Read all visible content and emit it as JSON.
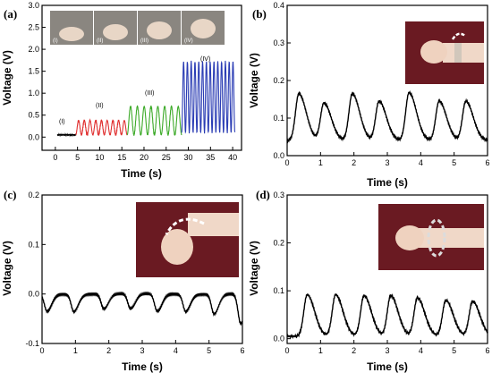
{
  "chart_data": [
    {
      "type": "line",
      "panel_label": "(a)",
      "xlabel": "Time (s)",
      "ylabel": "Voltage (V)",
      "xlim": [
        -3,
        42
      ],
      "ylim": [
        -0.3,
        3.0
      ],
      "xticks": [
        0,
        5,
        10,
        15,
        20,
        25,
        30,
        35,
        40
      ],
      "yticks": [
        0.0,
        0.5,
        1.0,
        1.5,
        2.0,
        2.5,
        3.0
      ],
      "ytick_labels": [
        "0.0",
        "0.5",
        "1.0",
        "1.5",
        "2.0",
        "2.5",
        "3.0"
      ],
      "grid": false,
      "inset_labels": [
        "(I)",
        "(II)",
        "(III)",
        "(IV)"
      ],
      "segments": [
        {
          "label": "(I)",
          "color": "#000000",
          "x_start": 0.5,
          "x_end": 4.6,
          "baseline": 0.05,
          "peak": 0.07,
          "cycles": 0
        },
        {
          "label": "(II)",
          "color": "#e03030",
          "x_start": 4.6,
          "x_end": 16.2,
          "baseline": 0.05,
          "peak": 0.38,
          "cycles": 9
        },
        {
          "label": "(III)",
          "color": "#3caa28",
          "x_start": 16.2,
          "x_end": 28.5,
          "baseline": 0.05,
          "peak": 0.7,
          "cycles": 8
        },
        {
          "label": "(IV)",
          "color": "#2a3cb4",
          "x_start": 28.5,
          "x_end": 40.5,
          "baseline": 0.1,
          "peak": 1.72,
          "cycles": 14
        }
      ]
    },
    {
      "type": "line",
      "panel_label": "(b)",
      "xlabel": "Time (s)",
      "ylabel": "Voltage (V)",
      "xlim": [
        0,
        6
      ],
      "ylim": [
        0,
        0.4
      ],
      "xticks": [
        0,
        1,
        2,
        3,
        4,
        5,
        6
      ],
      "yticks": [
        0.0,
        0.1,
        0.2,
        0.3,
        0.4
      ],
      "ytick_labels": [
        "0.0",
        "0.1",
        "0.2",
        "0.3",
        "0.4"
      ],
      "grid": false,
      "color": "#000000",
      "baseline": 0.04,
      "peak_times": [
        0.35,
        1.1,
        1.95,
        2.75,
        3.65,
        4.55,
        5.35
      ],
      "peak_values": [
        0.165,
        0.14,
        0.165,
        0.145,
        0.168,
        0.145,
        0.145
      ]
    },
    {
      "type": "line",
      "panel_label": "(c)",
      "xlabel": "Time (s)",
      "ylabel": "Voltage (V)",
      "xlim": [
        0,
        6
      ],
      "ylim": [
        -0.1,
        0.2
      ],
      "xticks": [
        0,
        1,
        2,
        3,
        4,
        5,
        6
      ],
      "yticks": [
        -0.1,
        0.0,
        0.1,
        0.2
      ],
      "ytick_labels": [
        "-0.1",
        "0.0",
        "0.1",
        "0.2"
      ],
      "grid": false,
      "color": "#000000",
      "baseline": 0.0,
      "dip_times": [
        0.15,
        0.95,
        1.85,
        2.65,
        3.45,
        4.3,
        5.15,
        5.95
      ],
      "dip_values": [
        -0.035,
        -0.035,
        -0.03,
        -0.03,
        -0.035,
        -0.035,
        -0.04,
        -0.06
      ]
    },
    {
      "type": "line",
      "panel_label": "(d)",
      "xlabel": "Time (s)",
      "ylabel": "Voltage (V)",
      "xlim": [
        0,
        6
      ],
      "ylim": [
        -0.01,
        0.3
      ],
      "xticks": [
        0,
        1,
        2,
        3,
        4,
        5,
        6
      ],
      "yticks": [
        0.0,
        0.1,
        0.2,
        0.3
      ],
      "ytick_labels": [
        "0.0",
        "0.1",
        "0.2",
        "0.3"
      ],
      "grid": false,
      "color": "#000000",
      "baseline": 0.005,
      "peak_times": [
        0.6,
        1.45,
        2.3,
        3.1,
        3.9,
        4.75,
        5.55
      ],
      "peak_values": [
        0.092,
        0.092,
        0.09,
        0.09,
        0.085,
        0.08,
        0.078
      ]
    }
  ]
}
